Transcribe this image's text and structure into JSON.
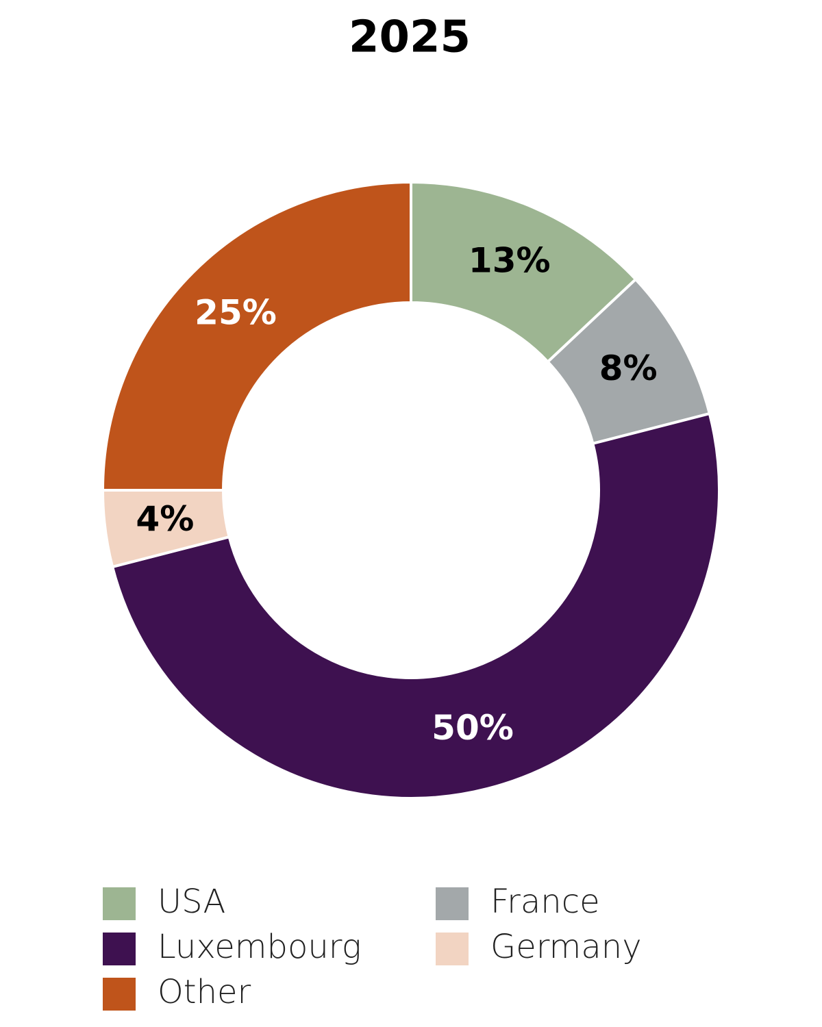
{
  "chart_data": {
    "type": "donut",
    "title": "2025",
    "categories": [
      "USA",
      "France",
      "Luxembourg",
      "Germany",
      "Other"
    ],
    "values": [
      13,
      8,
      50,
      4,
      25
    ],
    "value_labels": [
      "13%",
      "8%",
      "50%",
      "4%",
      "25%"
    ],
    "colors": [
      "#9db592",
      "#a3a8aa",
      "#3e1150",
      "#f2d4c2",
      "#bf541b"
    ]
  }
}
